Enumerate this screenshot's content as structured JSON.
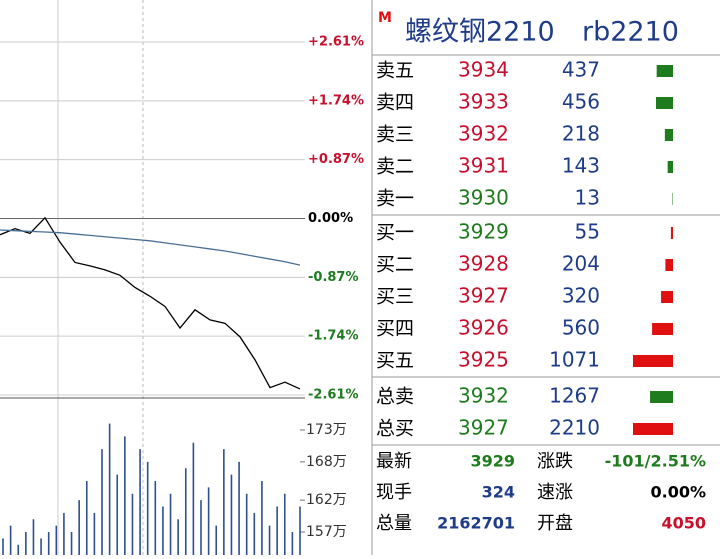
{
  "chart_data": [
    {
      "type": "line",
      "ylim": [
        -2.61,
        2.61
      ],
      "yticks": [
        {
          "value": 2.61,
          "label": "+2.61%"
        },
        {
          "value": 1.74,
          "label": "+1.74%"
        },
        {
          "value": 0.87,
          "label": "+0.87%"
        },
        {
          "value": 0,
          "label": "0.00%"
        },
        {
          "value": -0.87,
          "label": "-0.87%"
        },
        {
          "value": -1.74,
          "label": "-1.74%"
        },
        {
          "value": -2.61,
          "label": "-2.61%"
        }
      ],
      "series": [
        {
          "color": "#000000",
          "values": [
            -0.24,
            -0.15,
            -0.22,
            0.01,
            -0.35,
            -0.65,
            -0.7,
            -0.76,
            -0.84,
            -1.02,
            -1.15,
            -1.3,
            -1.62,
            -1.35,
            -1.5,
            -1.55,
            -1.75,
            -2.09,
            -2.5,
            -2.42,
            -2.52
          ]
        },
        {
          "color": "#4a6f95",
          "values": [
            -0.17,
            -0.18,
            -0.19,
            -0.2,
            -0.21,
            -0.23,
            -0.25,
            -0.27,
            -0.29,
            -0.31,
            -0.33,
            -0.36,
            -0.39,
            -0.42,
            -0.45,
            -0.48,
            -0.52,
            -0.56,
            -0.6,
            -0.64,
            -0.69
          ]
        }
      ]
    },
    {
      "type": "bar",
      "color": "#2f4f8f",
      "ylim": [
        153.4,
        177.7
      ],
      "yticks": [
        {
          "value": 173,
          "label": "173万"
        },
        {
          "value": 168,
          "label": "168万"
        },
        {
          "value": 162,
          "label": "162万"
        },
        {
          "value": 157,
          "label": "157万"
        }
      ],
      "values": [
        156,
        158,
        155,
        157,
        159,
        156,
        157,
        158,
        160,
        157,
        162,
        165,
        160,
        170,
        174,
        166,
        172,
        163,
        170,
        168,
        165,
        161,
        163,
        159,
        167,
        171,
        162,
        164,
        158,
        170,
        166,
        168,
        163,
        160,
        165,
        158,
        161,
        163,
        157,
        161
      ]
    }
  ],
  "quote": {
    "marker": "M",
    "name": "螺纹钢2210",
    "code": "rb2210",
    "book": [
      {
        "label": "卖五",
        "price": 3934,
        "price_color": "#c8102e",
        "volume": 437,
        "bar_color": "#1e7b1e"
      },
      {
        "label": "卖四",
        "price": 3933,
        "price_color": "#c8102e",
        "volume": 456,
        "bar_color": "#1e7b1e"
      },
      {
        "label": "卖三",
        "price": 3932,
        "price_color": "#c8102e",
        "volume": 218,
        "bar_color": "#1e7b1e"
      },
      {
        "label": "卖二",
        "price": 3931,
        "price_color": "#c8102e",
        "volume": 143,
        "bar_color": "#1e7b1e"
      },
      {
        "label": "卖一",
        "price": 3930,
        "price_color": "#1e7b1e",
        "volume": 13,
        "bar_color": "#1e7b1e"
      },
      {
        "label": "买一",
        "price": 3929,
        "price_color": "#1e7b1e",
        "volume": 55,
        "bar_color": "#e01010"
      },
      {
        "label": "买二",
        "price": 3928,
        "price_color": "#c8102e",
        "volume": 204,
        "bar_color": "#e01010"
      },
      {
        "label": "买三",
        "price": 3927,
        "price_color": "#c8102e",
        "volume": 320,
        "bar_color": "#e01010"
      },
      {
        "label": "买四",
        "price": 3926,
        "price_color": "#c8102e",
        "volume": 560,
        "bar_color": "#e01010"
      },
      {
        "label": "买五",
        "price": 3925,
        "price_color": "#c8102e",
        "volume": 1071,
        "bar_color": "#e01010"
      }
    ],
    "totals": [
      {
        "label": "总卖",
        "price": 3932,
        "price_color": "#1e7b1e",
        "volume": 1267,
        "bar_color": "#1e7b1e"
      },
      {
        "label": "总买",
        "price": 3927,
        "price_color": "#1e7b1e",
        "volume": 2210,
        "bar_color": "#e01010"
      }
    ],
    "stats": [
      [
        {
          "label": "最新",
          "value": 3929,
          "color": "#1e7b1e"
        },
        {
          "label": "涨跌",
          "value": "-101/2.51%",
          "color": "#1e7b1e"
        }
      ],
      [
        {
          "label": "现手",
          "value": 324,
          "color": "#1f3c88"
        },
        {
          "label": "速涨",
          "value": "0.00%",
          "color": "#000000"
        }
      ],
      [
        {
          "label": "总量",
          "value": 2162701,
          "color": "#1f3c88"
        },
        {
          "label": "开盘",
          "value": 4050,
          "color": "#c8102e"
        }
      ]
    ]
  }
}
